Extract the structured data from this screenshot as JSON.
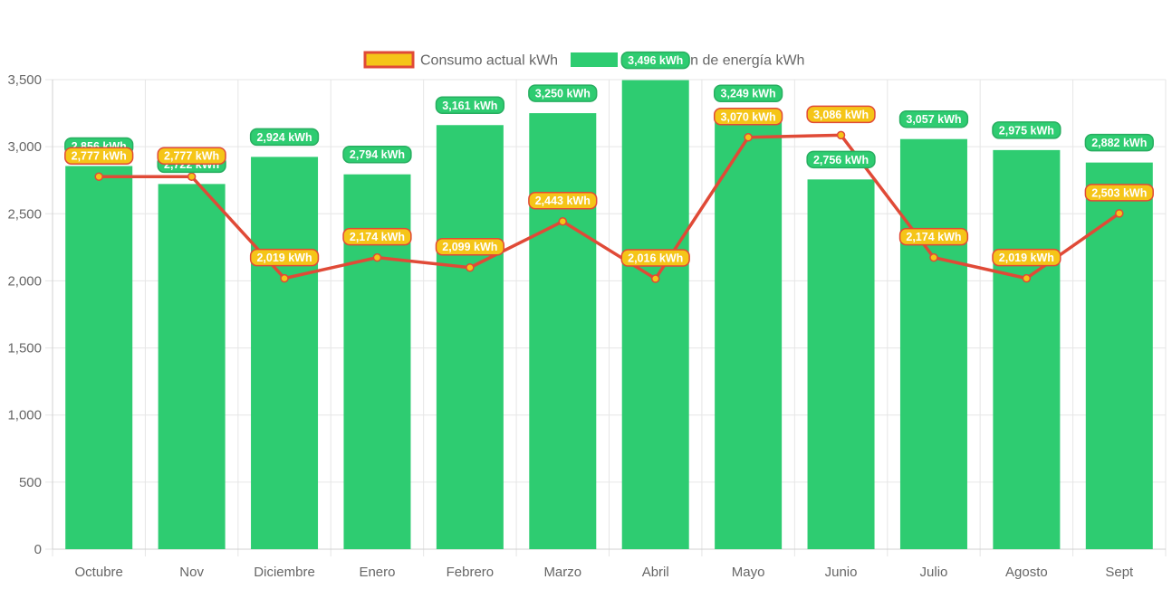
{
  "chart_data": {
    "type": "bar",
    "categories": [
      "Octubre",
      "Nov",
      "Diciembre",
      "Enero",
      "Febrero",
      "Marzo",
      "Abril",
      "Mayo",
      "Junio",
      "Julio",
      "Agosto",
      "Sept"
    ],
    "ylim": [
      0,
      3500
    ],
    "yticks": [
      0,
      500,
      1000,
      1500,
      2000,
      2500,
      3000,
      3500
    ],
    "ytick_labels": [
      "0",
      "500",
      "1,000",
      "1,500",
      "2,000",
      "2,500",
      "3,000",
      "3,500"
    ],
    "grid": true,
    "legend_position": "top",
    "series": [
      {
        "name": "Consumo actual kWh",
        "type": "line",
        "color": "#e04a37",
        "point_color": "#f5c518",
        "values": [
          2777,
          2777,
          2019,
          2174,
          2099,
          2443,
          2016,
          3070,
          3086,
          2174,
          2019,
          2503
        ],
        "data_labels": [
          "2,777 kWh",
          "2,777 kWh",
          "2,019 kWh",
          "2,174 kWh",
          "2,099 kWh",
          "2,443 kWh",
          "2,016 kWh",
          "3,070 kWh",
          "3,086 kWh",
          "2,174 kWh",
          "2,019 kWh",
          "2,503 kWh"
        ]
      },
      {
        "name": "Producción de energía kWh",
        "type": "bar",
        "color": "#2ecc71",
        "values": [
          2856,
          2722,
          2924,
          2794,
          3161,
          3250,
          3496,
          3249,
          2756,
          3057,
          2975,
          2882
        ],
        "data_labels": [
          "2,856 kWh",
          "2,722 kWh",
          "2,924 kWh",
          "2,794 kWh",
          "3,161 kWh",
          "3,250 kWh",
          "3,496 kWh",
          "3,249 kWh",
          "2,756 kWh",
          "3,057 kWh",
          "2,975 kWh",
          "2,882 kWh"
        ]
      }
    ]
  }
}
